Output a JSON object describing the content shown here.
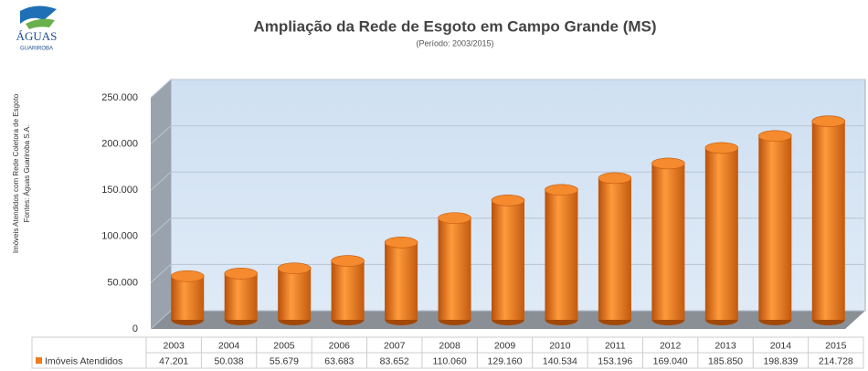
{
  "logo": {
    "name": "ÁGUAS",
    "subname": "GUARIROBA"
  },
  "chart_data": {
    "type": "bar",
    "title": "Ampliação da Rede de Esgoto em Campo Grande (MS)",
    "subtitle": "(Período: 2003/2015)",
    "y_label": [
      "Imóveis Atendidos com Rede Coletora de Esgoto",
      "Fontes: Águas Guariroba S.A."
    ],
    "categories": [
      "2003",
      "2004",
      "2005",
      "2006",
      "2007",
      "2008",
      "2009",
      "2010",
      "2011",
      "2012",
      "2013",
      "2014",
      "2015"
    ],
    "series": [
      {
        "name": "Imóveis Atendidos",
        "color": "#f07b1c",
        "values": [
          47201,
          50038,
          55679,
          63683,
          83652,
          110060,
          129160,
          140534,
          153196,
          169040,
          185850,
          198839,
          214728
        ],
        "value_labels": [
          "47.201",
          "50.038",
          "55.679",
          "63.683",
          "83.652",
          "110.060",
          "129.160",
          "140.534",
          "153.196",
          "169.040",
          "185.850",
          "198.839",
          "214.728"
        ]
      }
    ],
    "ylim": [
      0,
      250000
    ],
    "yticks": [
      0,
      {
        "value": 50000,
        "label": "50.000"
      },
      {
        "value": 100000,
        "label": "100.000"
      },
      {
        "value": 150000,
        "label": "150.000"
      },
      {
        "value": 200000,
        "label": "200.000"
      },
      {
        "value": 250000,
        "label": "250.000"
      }
    ],
    "grid": true
  }
}
